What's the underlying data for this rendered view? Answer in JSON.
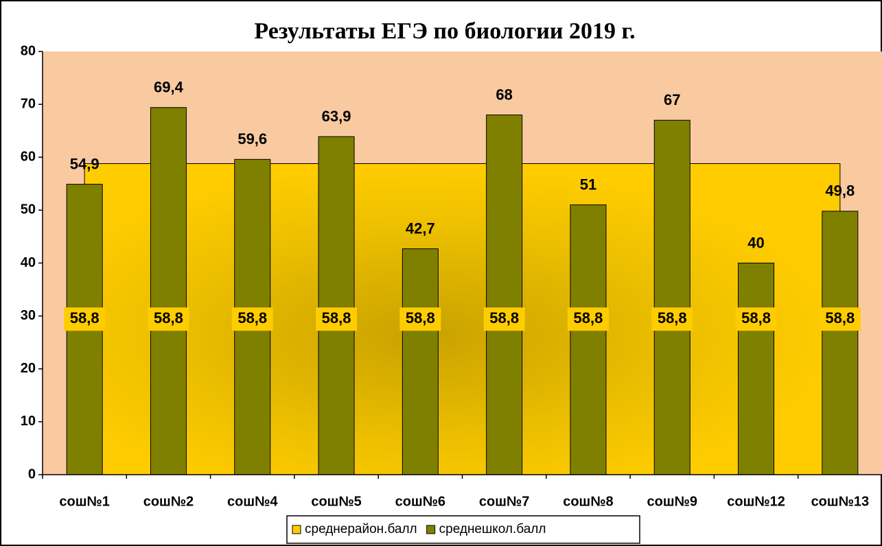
{
  "chart_data": {
    "type": "bar",
    "title": "Результаты ЕГЭ по биологии 2019 г.",
    "categories": [
      "сош№1",
      "сош№2",
      "сош№4",
      "сош№5",
      "сош№6",
      "сош№7",
      "сош№8",
      "сош№9",
      "сош№12",
      "сош№13"
    ],
    "series": [
      {
        "name": "среднерайон.балл",
        "type": "area",
        "color": "#FFCC00",
        "values": [
          58.8,
          58.8,
          58.8,
          58.8,
          58.8,
          58.8,
          58.8,
          58.8,
          58.8,
          58.8
        ],
        "value_labels": [
          "58,8",
          "58,8",
          "58,8",
          "58,8",
          "58,8",
          "58,8",
          "58,8",
          "58,8",
          "58,8",
          "58,8"
        ]
      },
      {
        "name": "среднешкол.балл",
        "type": "bar",
        "color": "#808000",
        "values": [
          54.9,
          69.4,
          59.6,
          63.9,
          42.7,
          68,
          51,
          67,
          40,
          49.8
        ],
        "value_labels": [
          "54,9",
          "69,4",
          "59,6",
          "63,9",
          "42,7",
          "68",
          "51",
          "67",
          "40",
          "49,8"
        ]
      }
    ],
    "ylim": [
      0,
      80
    ],
    "yticks": [
      0,
      10,
      20,
      30,
      40,
      50,
      60,
      70,
      80
    ],
    "legend": "bottom"
  }
}
